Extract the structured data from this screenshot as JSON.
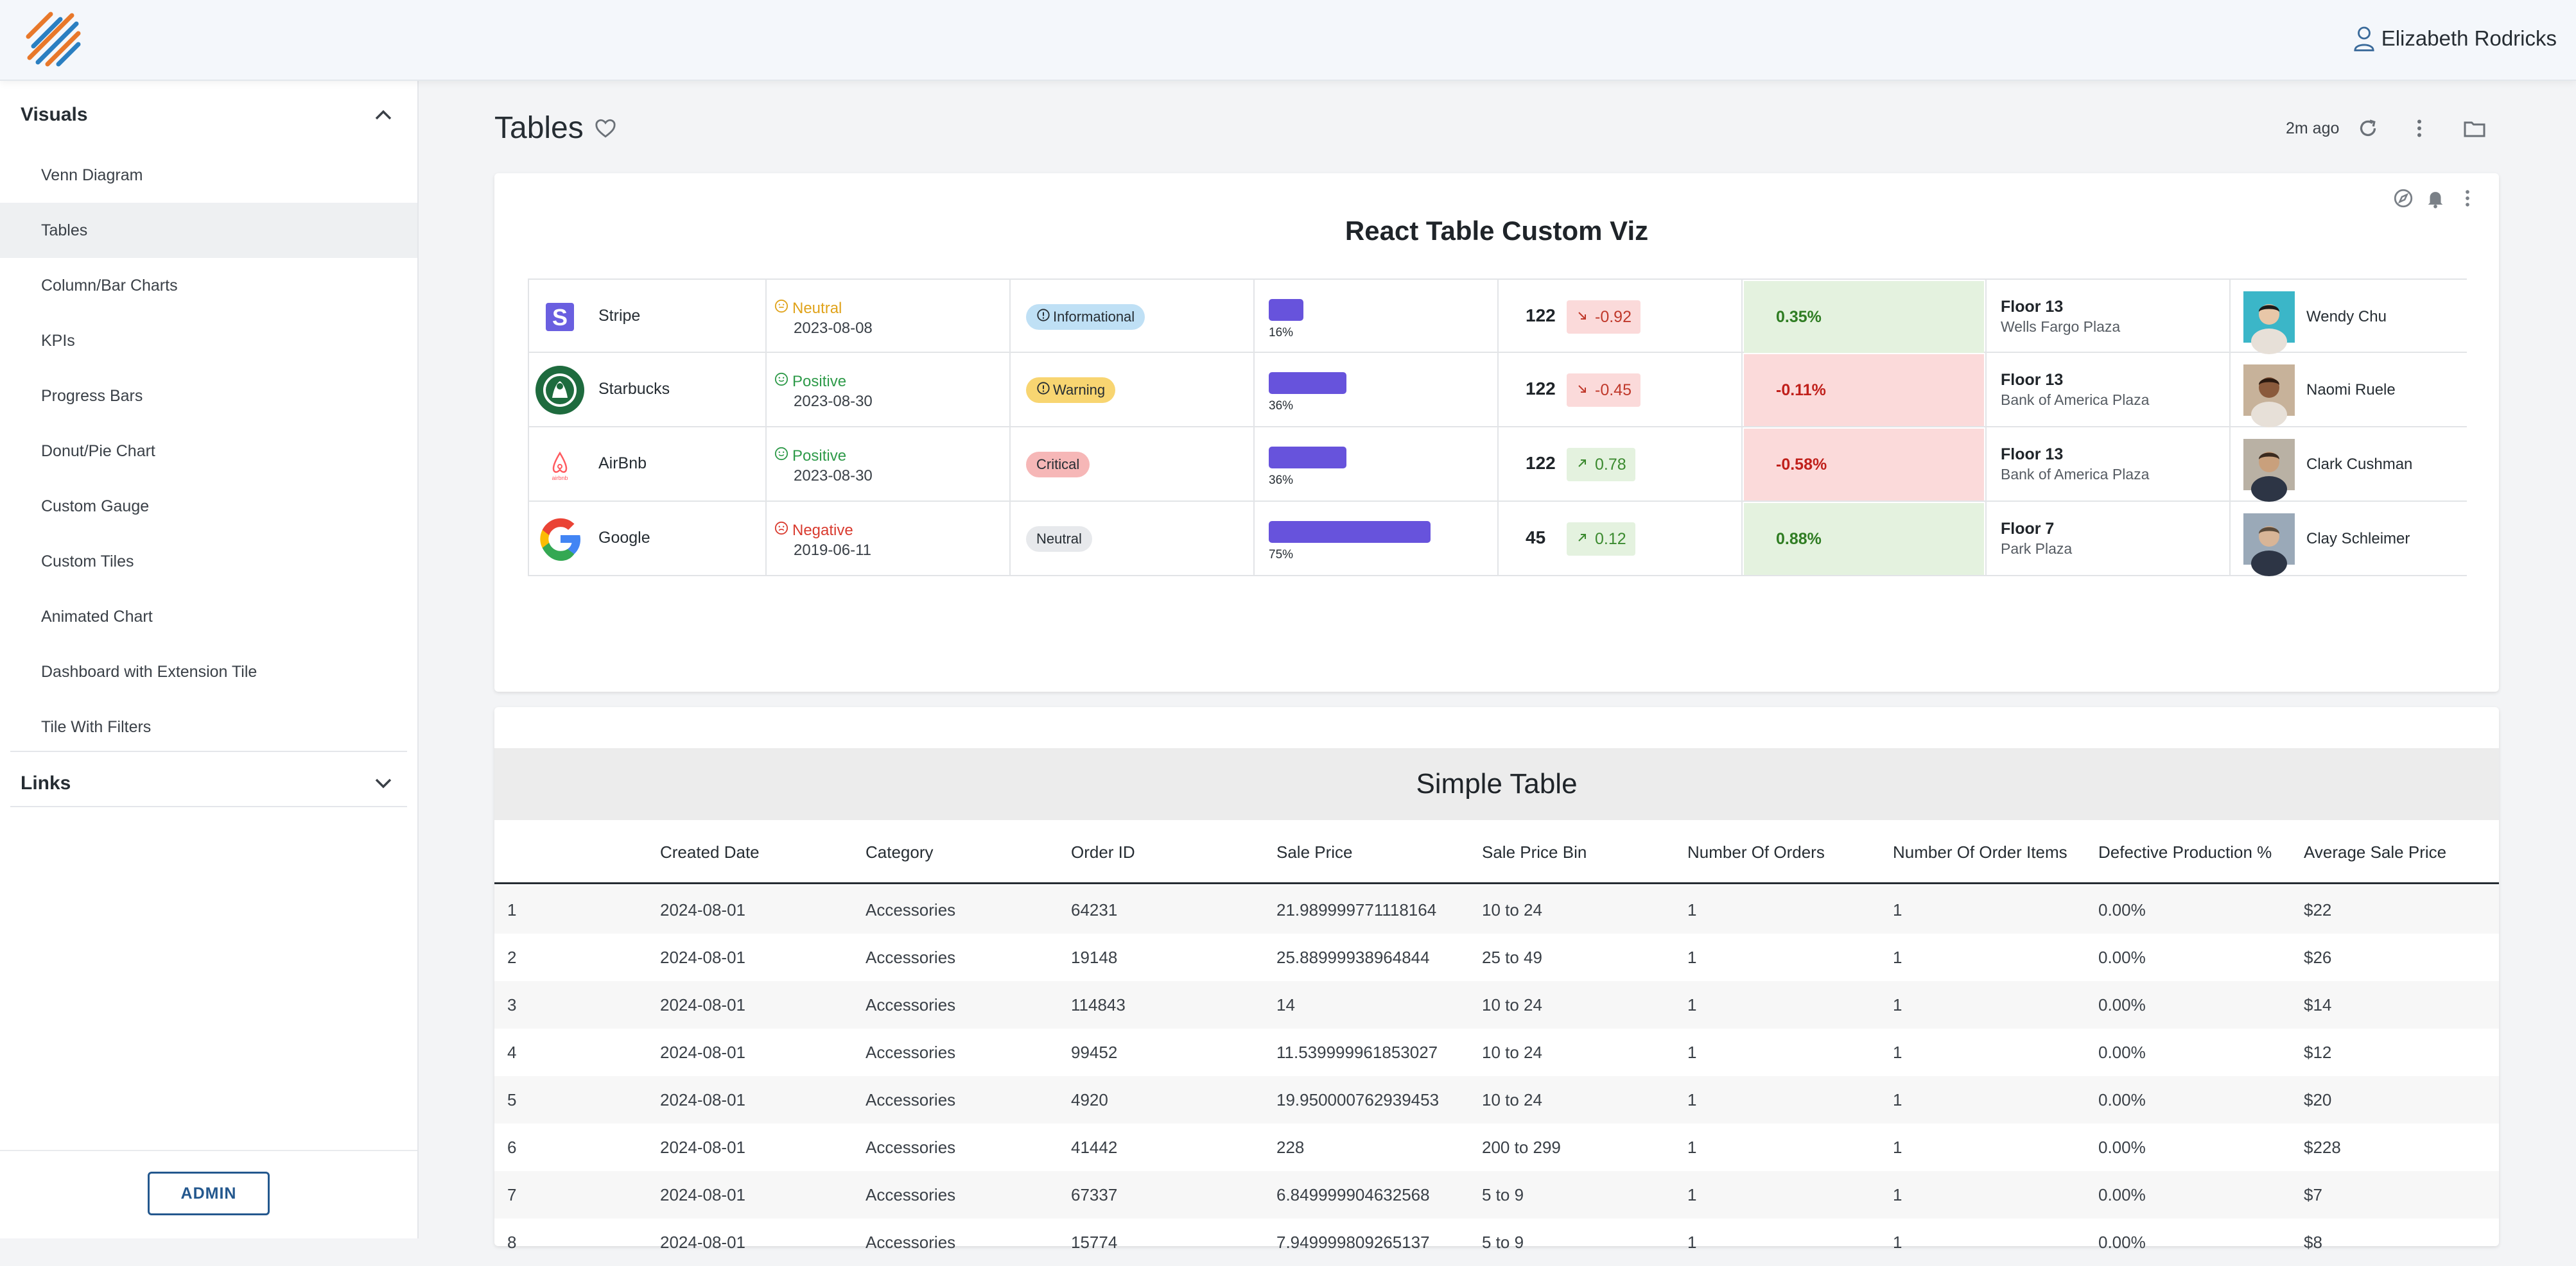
{
  "header": {
    "user_name": "Elizabeth Rodricks"
  },
  "sidebar": {
    "visuals_label": "Visuals",
    "links_label": "Links",
    "items": [
      {
        "label": "Venn Diagram"
      },
      {
        "label": "Tables",
        "active": true
      },
      {
        "label": "Column/Bar Charts"
      },
      {
        "label": "KPIs"
      },
      {
        "label": "Progress Bars"
      },
      {
        "label": "Donut/Pie Chart"
      },
      {
        "label": "Custom Gauge"
      },
      {
        "label": "Custom Tiles"
      },
      {
        "label": "Animated Chart"
      },
      {
        "label": "Dashboard with Extension Tile"
      },
      {
        "label": "Tile With Filters"
      }
    ],
    "admin_label": "ADMIN"
  },
  "dashboard": {
    "title": "Tables",
    "last_updated": "2m ago"
  },
  "viz": {
    "title": "React Table Custom Viz",
    "rows": [
      {
        "company": "Stripe",
        "sentiment": "Neutral",
        "sentiment_color": "#e0a31b",
        "date": "2023-08-08",
        "badge": "Informational",
        "badge_bg": "#bfe0f5",
        "badge_icon": true,
        "progress_pct": 16,
        "progress_label": "16%",
        "count": "122",
        "delta": "-0.92",
        "delta_dir": "down",
        "pct": "0.35%",
        "pct_positive": true,
        "floor": "Floor 13",
        "place": "Wells Fargo Plaza",
        "person": "Wendy Chu"
      },
      {
        "company": "Starbucks",
        "sentiment": "Positive",
        "sentiment_color": "#2e9a49",
        "date": "2023-08-30",
        "badge": "Warning",
        "badge_bg": "#f8d571",
        "badge_icon": true,
        "progress_pct": 36,
        "progress_label": "36%",
        "count": "122",
        "delta": "-0.45",
        "delta_dir": "down",
        "pct": "-0.11%",
        "pct_positive": false,
        "floor": "Floor 13",
        "place": "Bank of America Plaza",
        "person": "Naomi Ruele"
      },
      {
        "company": "AirBnb",
        "sentiment": "Positive",
        "sentiment_color": "#2e9a49",
        "date": "2023-08-30",
        "badge": "Critical",
        "badge_bg": "#f6b7b7",
        "badge_icon": false,
        "progress_pct": 36,
        "progress_label": "36%",
        "count": "122",
        "delta": "0.78",
        "delta_dir": "up",
        "pct": "-0.58%",
        "pct_positive": false,
        "floor": "Floor 13",
        "place": "Bank of America Plaza",
        "person": "Clark Cushman"
      },
      {
        "company": "Google",
        "sentiment": "Negative",
        "sentiment_color": "#d93b2f",
        "date": "2019-06-11",
        "badge": "Neutral",
        "badge_bg": "#e7e9ec",
        "badge_icon": false,
        "progress_pct": 75,
        "progress_label": "75%",
        "count": "45",
        "delta": "0.12",
        "delta_dir": "up",
        "pct": "0.88%",
        "pct_positive": true,
        "floor": "Floor 7",
        "place": "Park Plaza",
        "person": "Clay Schleimer"
      }
    ]
  },
  "simple_table": {
    "title": "Simple Table",
    "columns": [
      "",
      "Created Date",
      "Category",
      "Order ID",
      "Sale Price",
      "Sale Price Bin",
      "Number Of Orders",
      "Number Of Order Items",
      "Defective Production %",
      "Average Sale Price"
    ],
    "rows": [
      [
        "1",
        "2024-08-01",
        "Accessories",
        "64231",
        "21.989999771118164",
        "10 to 24",
        "1",
        "1",
        "0.00%",
        "$22"
      ],
      [
        "2",
        "2024-08-01",
        "Accessories",
        "19148",
        "25.88999938964844",
        "25 to 49",
        "1",
        "1",
        "0.00%",
        "$26"
      ],
      [
        "3",
        "2024-08-01",
        "Accessories",
        "114843",
        "14",
        "10 to 24",
        "1",
        "1",
        "0.00%",
        "$14"
      ],
      [
        "4",
        "2024-08-01",
        "Accessories",
        "99452",
        "11.539999961853027",
        "10 to 24",
        "1",
        "1",
        "0.00%",
        "$12"
      ],
      [
        "5",
        "2024-08-01",
        "Accessories",
        "4920",
        "19.950000762939453",
        "10 to 24",
        "1",
        "1",
        "0.00%",
        "$20"
      ],
      [
        "6",
        "2024-08-01",
        "Accessories",
        "41442",
        "228",
        "200 to 299",
        "1",
        "1",
        "0.00%",
        "$228"
      ],
      [
        "7",
        "2024-08-01",
        "Accessories",
        "67337",
        "6.849999904632568",
        "5 to 9",
        "1",
        "1",
        "0.00%",
        "$7"
      ],
      [
        "8",
        "2024-08-01",
        "Accessories",
        "15774",
        "7.949999809265137",
        "5 to 9",
        "1",
        "1",
        "0.00%",
        "$8"
      ]
    ]
  }
}
